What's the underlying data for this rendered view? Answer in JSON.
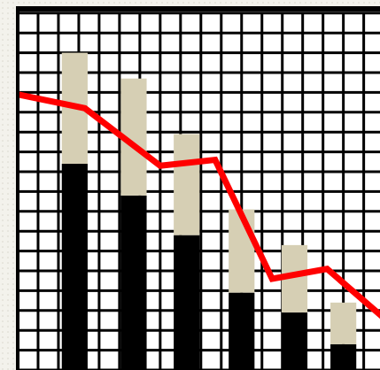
{
  "chart_data": {
    "type": "bar",
    "stacked": true,
    "x": [
      2.8,
      5.7,
      8.3,
      11.0,
      13.6,
      16.0
    ],
    "series": [
      {
        "color": "#000000",
        "values": [
          10.4,
          8.8,
          6.8,
          3.9,
          2.9,
          1.3
        ]
      },
      {
        "color": "#d6cfb4",
        "values": [
          5.6,
          5.9,
          5.1,
          4.2,
          3.4,
          2.1
        ]
      }
    ],
    "line": {
      "type": "line",
      "color": "#ff0000",
      "x": [
        0,
        3.3,
        7.0,
        9.7,
        12.5,
        15.2,
        17.9
      ],
      "values": [
        13.9,
        13.2,
        10.3,
        10.6,
        4.6,
        5.1,
        2.7
      ]
    },
    "xlim": [
      0,
      17.8
    ],
    "ylim": [
      0,
      18
    ],
    "xticks": [
      0,
      1,
      2,
      3,
      4,
      5,
      6,
      7,
      8,
      9,
      10,
      11,
      12,
      13,
      14,
      15,
      16,
      17
    ],
    "yticks": [
      0,
      1,
      2,
      3,
      4,
      5,
      6,
      7,
      8,
      9,
      10,
      11,
      12,
      13,
      14,
      15,
      16,
      17,
      18
    ],
    "grid": true
  }
}
